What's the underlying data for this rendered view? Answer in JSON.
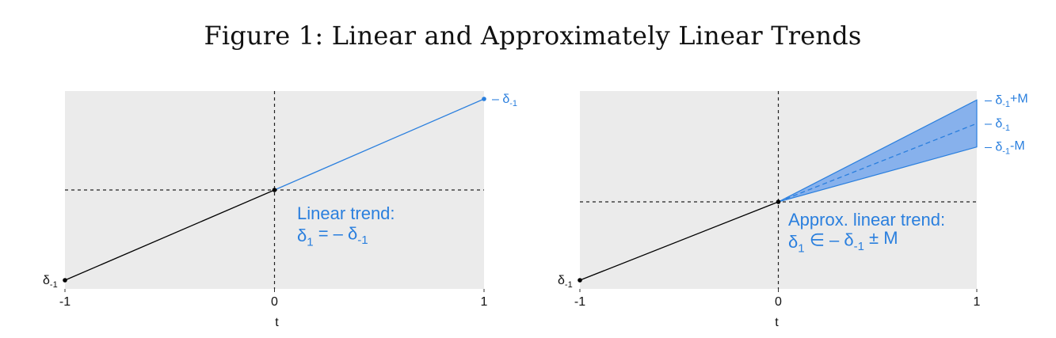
{
  "title": "Figure 1: Linear and Approximately Linear Trends",
  "colors": {
    "blue": "#2a7fde",
    "band_fill": "#87b1ec",
    "panel_bg": "#ebebeb",
    "black": "#000000"
  },
  "chart_data": [
    {
      "type": "line",
      "panel": "left",
      "xlabel": "t",
      "x_ticks": [
        "-1",
        "0",
        "1"
      ],
      "xlim": [
        -1,
        1
      ],
      "ylim": [
        -1.0,
        1.0
      ],
      "grid": false,
      "series": [
        {
          "x": [
            -1,
            0
          ],
          "y": [
            -1,
            0
          ],
          "color": "#000000"
        },
        {
          "x": [
            0,
            1
          ],
          "y": [
            0,
            1
          ],
          "color": "#2a7fde"
        }
      ],
      "points": [
        {
          "x": -1,
          "y": -1,
          "color": "#000000"
        },
        {
          "x": 0,
          "y": 0,
          "color": "#000000"
        },
        {
          "x": 1,
          "y": 1,
          "color": "#2a7fde"
        }
      ],
      "reference_lines": {
        "x": 0,
        "y": 0
      },
      "labels": {
        "left_point": "δ-1",
        "right_point": "– δ-1"
      },
      "annotation": {
        "line1": "Linear trend:",
        "line2": "δ1 = – δ-1"
      }
    },
    {
      "type": "area",
      "panel": "right",
      "xlabel": "t",
      "x_ticks": [
        "-1",
        "0",
        "1"
      ],
      "xlim": [
        -1,
        1
      ],
      "ylim": [
        -1.0,
        1.0
      ],
      "grid": false,
      "series": [
        {
          "x": [
            -1,
            0
          ],
          "y": [
            -1,
            0
          ],
          "color": "#000000"
        },
        {
          "x": [
            0,
            1
          ],
          "y": [
            0,
            1
          ],
          "color": "#2a7fde",
          "dash": true
        }
      ],
      "band": {
        "x": [
          0,
          1
        ],
        "lower": [
          0,
          0.7
        ],
        "upper": [
          0,
          1.3
        ]
      },
      "points": [
        {
          "x": -1,
          "y": -1,
          "color": "#000000"
        },
        {
          "x": 0,
          "y": 0,
          "color": "#000000"
        }
      ],
      "reference_lines": {
        "x": 0,
        "y": 0
      },
      "labels": {
        "left_point": "δ-1",
        "upper": "– δ-1+M",
        "mid": "– δ-1",
        "lower": "– δ-1-M"
      },
      "annotation": {
        "line1": "Approx. linear trend:",
        "line2": "δ1 ∈ – δ-1 ± M"
      }
    }
  ]
}
